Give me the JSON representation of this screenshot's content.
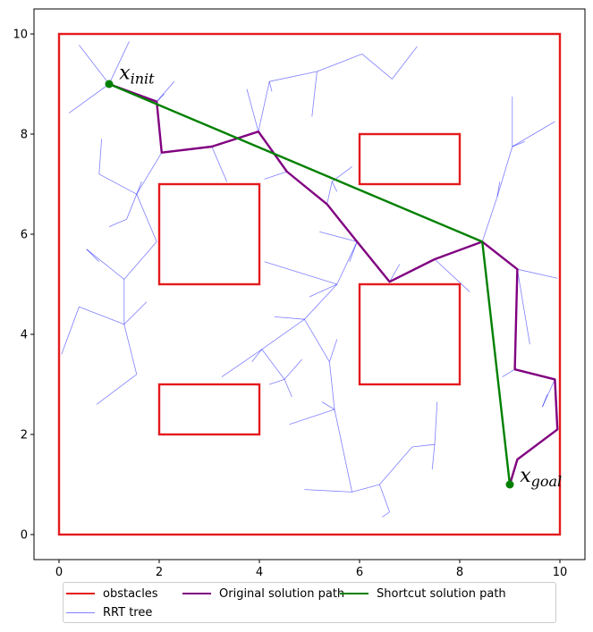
{
  "chart_data": {
    "type": "line",
    "xlim": [
      -0.5,
      10.5
    ],
    "ylim": [
      -0.5,
      10.5
    ],
    "x_ticks": [
      0,
      2,
      4,
      6,
      8,
      10
    ],
    "y_ticks": [
      0,
      2,
      4,
      6,
      8,
      10
    ],
    "grid": false,
    "legend_placement": "bottom-center",
    "colors": {
      "obstacles": "#e41a1c",
      "tree": "#0000ff",
      "original": "#800080",
      "shortcut": "#008000"
    },
    "legend": [
      {
        "key": "obstacles",
        "label": "obstacles"
      },
      {
        "key": "tree",
        "label": "RRT tree"
      },
      {
        "key": "original",
        "label": "Original solution path"
      },
      {
        "key": "shortcut",
        "label": "Shortcut solution path"
      }
    ],
    "annotations": [
      {
        "base": "x",
        "sub": "init",
        "x": 1.2,
        "y": 9.1
      },
      {
        "base": "x",
        "sub": "goal",
        "x": 9.2,
        "y": 1.05
      }
    ],
    "start": [
      1.0,
      9.0
    ],
    "goal": [
      9.0,
      1.0
    ],
    "obstacles": [
      {
        "x": 0,
        "y": 0,
        "w": 10,
        "h": 10
      },
      {
        "x": 2,
        "y": 5,
        "w": 2,
        "h": 2
      },
      {
        "x": 6,
        "y": 7,
        "w": 2,
        "h": 1
      },
      {
        "x": 6,
        "y": 3,
        "w": 2,
        "h": 2
      },
      {
        "x": 2,
        "y": 2,
        "w": 2,
        "h": 1
      }
    ],
    "original_path": [
      [
        1.0,
        9.0
      ],
      [
        1.95,
        8.65
      ],
      [
        2.05,
        7.63
      ],
      [
        3.05,
        7.75
      ],
      [
        3.98,
        8.05
      ],
      [
        4.55,
        7.25
      ],
      [
        5.35,
        6.6
      ],
      [
        5.95,
        5.85
      ],
      [
        6.6,
        5.05
      ],
      [
        7.5,
        5.5
      ],
      [
        8.45,
        5.85
      ],
      [
        9.15,
        5.3
      ],
      [
        9.1,
        3.3
      ],
      [
        9.9,
        3.1
      ],
      [
        9.95,
        2.1
      ],
      [
        9.15,
        1.5
      ],
      [
        9.0,
        1.0
      ]
    ],
    "shortcut_path": [
      [
        1.0,
        9.0
      ],
      [
        8.45,
        5.85
      ],
      [
        9.0,
        1.0
      ]
    ],
    "rrt_tree": [
      [
        [
          1.0,
          9.0
        ],
        [
          0.4,
          9.78
        ]
      ],
      [
        [
          1.0,
          9.0
        ],
        [
          1.4,
          9.85
        ]
      ],
      [
        [
          1.0,
          9.0
        ],
        [
          0.2,
          8.42
        ]
      ],
      [
        [
          1.0,
          9.0
        ],
        [
          1.95,
          8.65
        ]
      ],
      [
        [
          1.95,
          8.65
        ],
        [
          2.3,
          9.05
        ]
      ],
      [
        [
          1.95,
          8.65
        ],
        [
          2.1,
          8.8
        ]
      ],
      [
        [
          2.05,
          7.63
        ],
        [
          1.55,
          6.8
        ]
      ],
      [
        [
          1.55,
          6.8
        ],
        [
          1.65,
          7.05
        ]
      ],
      [
        [
          1.55,
          6.8
        ],
        [
          0.8,
          7.2
        ]
      ],
      [
        [
          0.8,
          7.2
        ],
        [
          0.85,
          7.9
        ]
      ],
      [
        [
          1.55,
          6.8
        ],
        [
          1.35,
          6.3
        ]
      ],
      [
        [
          1.35,
          6.3
        ],
        [
          1.0,
          6.15
        ]
      ],
      [
        [
          1.55,
          6.8
        ],
        [
          1.95,
          5.85
        ]
      ],
      [
        [
          3.05,
          7.75
        ],
        [
          3.35,
          7.05
        ]
      ],
      [
        [
          3.98,
          8.05
        ],
        [
          3.75,
          8.9
        ]
      ],
      [
        [
          3.98,
          8.05
        ],
        [
          4.2,
          9.05
        ]
      ],
      [
        [
          4.2,
          9.05
        ],
        [
          5.15,
          9.25
        ]
      ],
      [
        [
          5.15,
          9.25
        ],
        [
          6.05,
          9.6
        ]
      ],
      [
        [
          6.05,
          9.6
        ],
        [
          6.65,
          9.1
        ]
      ],
      [
        [
          6.65,
          9.1
        ],
        [
          7.15,
          9.75
        ]
      ],
      [
        [
          5.15,
          9.25
        ],
        [
          5.05,
          8.35
        ]
      ],
      [
        [
          4.2,
          9.05
        ],
        [
          4.25,
          8.85
        ]
      ],
      [
        [
          4.55,
          7.25
        ],
        [
          4.1,
          7.1
        ]
      ],
      [
        [
          5.35,
          6.6
        ],
        [
          5.45,
          7.05
        ]
      ],
      [
        [
          5.45,
          7.05
        ],
        [
          5.55,
          6.85
        ]
      ],
      [
        [
          5.45,
          7.05
        ],
        [
          5.85,
          7.35
        ]
      ],
      [
        [
          5.95,
          5.85
        ],
        [
          5.55,
          5.0
        ]
      ],
      [
        [
          5.95,
          5.85
        ],
        [
          5.2,
          6.05
        ]
      ],
      [
        [
          5.95,
          5.85
        ],
        [
          5.8,
          5.45
        ]
      ],
      [
        [
          5.55,
          5.0
        ],
        [
          4.1,
          5.45
        ]
      ],
      [
        [
          5.55,
          5.0
        ],
        [
          5.0,
          4.75
        ]
      ],
      [
        [
          5.55,
          5.0
        ],
        [
          4.9,
          4.3
        ]
      ],
      [
        [
          4.9,
          4.3
        ],
        [
          4.3,
          4.35
        ]
      ],
      [
        [
          4.9,
          4.3
        ],
        [
          5.4,
          3.45
        ]
      ],
      [
        [
          5.4,
          3.45
        ],
        [
          5.55,
          3.9
        ]
      ],
      [
        [
          5.4,
          3.45
        ],
        [
          5.5,
          2.5
        ]
      ],
      [
        [
          5.5,
          2.5
        ],
        [
          5.25,
          2.65
        ]
      ],
      [
        [
          5.5,
          2.5
        ],
        [
          4.6,
          2.2
        ]
      ],
      [
        [
          5.5,
          2.5
        ],
        [
          5.85,
          0.85
        ]
      ],
      [
        [
          5.85,
          0.85
        ],
        [
          4.9,
          0.9
        ]
      ],
      [
        [
          5.85,
          0.85
        ],
        [
          6.4,
          1.0
        ]
      ],
      [
        [
          6.4,
          1.0
        ],
        [
          6.6,
          0.45
        ]
      ],
      [
        [
          6.6,
          0.45
        ],
        [
          6.45,
          0.35
        ]
      ],
      [
        [
          6.4,
          1.0
        ],
        [
          7.05,
          1.75
        ]
      ],
      [
        [
          7.05,
          1.75
        ],
        [
          7.5,
          1.8
        ]
      ],
      [
        [
          7.5,
          1.8
        ],
        [
          7.45,
          1.3
        ]
      ],
      [
        [
          7.5,
          1.8
        ],
        [
          7.55,
          2.65
        ]
      ],
      [
        [
          4.9,
          4.3
        ],
        [
          4.05,
          3.7
        ]
      ],
      [
        [
          4.05,
          3.7
        ],
        [
          3.25,
          3.15
        ]
      ],
      [
        [
          4.05,
          3.7
        ],
        [
          4.5,
          3.1
        ]
      ],
      [
        [
          4.5,
          3.1
        ],
        [
          4.65,
          2.75
        ]
      ],
      [
        [
          4.5,
          3.1
        ],
        [
          4.85,
          3.5
        ]
      ],
      [
        [
          4.5,
          3.1
        ],
        [
          4.2,
          3.0
        ]
      ],
      [
        [
          4.05,
          3.7
        ],
        [
          3.85,
          3.45
        ]
      ],
      [
        [
          6.6,
          5.05
        ],
        [
          6.8,
          5.4
        ]
      ],
      [
        [
          7.5,
          5.5
        ],
        [
          8.2,
          4.85
        ]
      ],
      [
        [
          8.45,
          5.85
        ],
        [
          8.75,
          6.75
        ]
      ],
      [
        [
          8.75,
          6.75
        ],
        [
          8.8,
          7.05
        ]
      ],
      [
        [
          8.75,
          6.75
        ],
        [
          9.05,
          7.75
        ]
      ],
      [
        [
          9.05,
          7.75
        ],
        [
          9.05,
          8.75
        ]
      ],
      [
        [
          9.05,
          7.75
        ],
        [
          9.3,
          7.85
        ]
      ],
      [
        [
          9.05,
          7.75
        ],
        [
          9.9,
          8.25
        ]
      ],
      [
        [
          9.15,
          5.3
        ],
        [
          9.95,
          5.12
        ]
      ],
      [
        [
          9.1,
          3.3
        ],
        [
          9.1,
          3.45
        ]
      ],
      [
        [
          9.1,
          3.3
        ],
        [
          8.85,
          3.15
        ]
      ],
      [
        [
          9.15,
          5.3
        ],
        [
          9.4,
          3.8
        ]
      ],
      [
        [
          9.9,
          3.1
        ],
        [
          9.65,
          2.55
        ]
      ],
      [
        [
          9.65,
          2.55
        ],
        [
          9.75,
          2.8
        ]
      ],
      [
        [
          1.3,
          5.1
        ],
        [
          0.55,
          5.7
        ]
      ],
      [
        [
          1.3,
          5.1
        ],
        [
          1.95,
          5.85
        ]
      ],
      [
        [
          0.55,
          5.7
        ],
        [
          0.8,
          5.45
        ]
      ],
      [
        [
          1.3,
          5.1
        ],
        [
          1.3,
          4.2
        ]
      ],
      [
        [
          1.3,
          4.2
        ],
        [
          0.4,
          4.55
        ]
      ],
      [
        [
          0.4,
          4.55
        ],
        [
          0.05,
          3.6
        ]
      ],
      [
        [
          1.3,
          4.2
        ],
        [
          1.75,
          4.65
        ]
      ],
      [
        [
          1.3,
          4.2
        ],
        [
          1.55,
          3.2
        ]
      ],
      [
        [
          1.55,
          3.2
        ],
        [
          0.75,
          2.6
        ]
      ]
    ]
  }
}
